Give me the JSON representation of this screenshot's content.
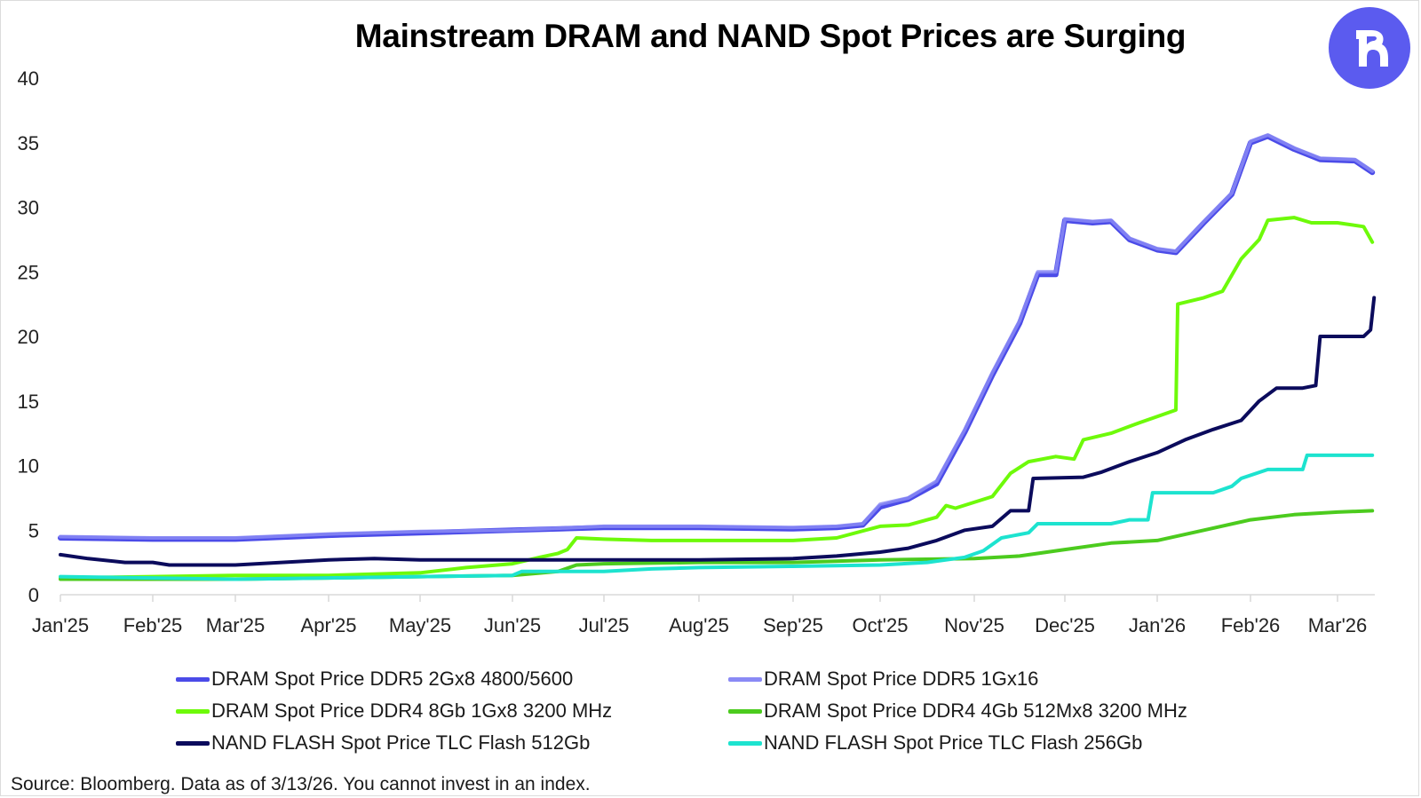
{
  "header": {
    "title": "Mainstream DRAM and NAND Spot Prices are Surging",
    "logo_icon": "brand-logo-r-icon",
    "logo_color": "#5B5BEF"
  },
  "footer": {
    "source": "Source: Bloomberg. Data as of 3/13/26. You cannot invest in an index."
  },
  "chart_data": {
    "type": "line",
    "title": "Mainstream DRAM and NAND Spot Prices are Surging",
    "xlabel": "",
    "ylabel": "",
    "ylim": [
      0,
      40
    ],
    "yticks": [
      0,
      5,
      10,
      15,
      20,
      25,
      30,
      35,
      40
    ],
    "x_tick_labels": [
      "Jan'25",
      "Feb'25",
      "Mar'25",
      "Apr'25",
      "May'25",
      "Jun'25",
      "Jul'25",
      "Aug'25",
      "Sep'25",
      "Oct'25",
      "Nov'25",
      "Dec'25",
      "Jan'26",
      "Feb'26",
      "Mar'26"
    ],
    "x_unit": "months since Jan 2025",
    "x_range": [
      0,
      14.4
    ],
    "grid": false,
    "legend_position": "bottom",
    "series": [
      {
        "name": "DRAM Spot Price DDR5 2Gx8 4800/5600",
        "color": "#4B4BE8",
        "points": [
          [
            0,
            4.4
          ],
          [
            1,
            4.3
          ],
          [
            2,
            4.3
          ],
          [
            3,
            4.6
          ],
          [
            4,
            4.8
          ],
          [
            5,
            5.0
          ],
          [
            6,
            5.2
          ],
          [
            7,
            5.2
          ],
          [
            8,
            5.1
          ],
          [
            8.5,
            5.2
          ],
          [
            8.8,
            5.4
          ],
          [
            9,
            6.8
          ],
          [
            9.3,
            7.4
          ],
          [
            9.6,
            8.6
          ],
          [
            9.9,
            12.6
          ],
          [
            10.2,
            17.0
          ],
          [
            10.5,
            21.0
          ],
          [
            10.7,
            24.8
          ],
          [
            10.9,
            24.8
          ],
          [
            11.0,
            29.0
          ],
          [
            11.3,
            28.8
          ],
          [
            11.5,
            28.9
          ],
          [
            11.7,
            27.5
          ],
          [
            12.0,
            26.7
          ],
          [
            12.2,
            26.5
          ],
          [
            12.5,
            28.8
          ],
          [
            12.8,
            31.0
          ],
          [
            13.0,
            35.0
          ],
          [
            13.2,
            35.5
          ],
          [
            13.5,
            34.5
          ],
          [
            13.8,
            33.7
          ],
          [
            14.2,
            33.6
          ],
          [
            14.4,
            32.7
          ]
        ]
      },
      {
        "name": "DRAM Spot Price DDR5 1Gx16",
        "color": "#8A8AF5",
        "points": [
          [
            0,
            4.5
          ],
          [
            1,
            4.4
          ],
          [
            2,
            4.4
          ],
          [
            3,
            4.7
          ],
          [
            4,
            4.9
          ],
          [
            5,
            5.0
          ],
          [
            6,
            5.3
          ],
          [
            7,
            5.3
          ],
          [
            8,
            5.2
          ],
          [
            8.5,
            5.3
          ],
          [
            8.8,
            5.5
          ],
          [
            9,
            7.0
          ],
          [
            9.3,
            7.5
          ],
          [
            9.6,
            8.8
          ],
          [
            9.9,
            12.8
          ],
          [
            10.2,
            17.2
          ],
          [
            10.5,
            21.2
          ],
          [
            10.7,
            25.0
          ],
          [
            10.9,
            25.0
          ],
          [
            11.0,
            29.1
          ],
          [
            11.3,
            28.9
          ],
          [
            11.5,
            29.0
          ],
          [
            11.7,
            27.6
          ],
          [
            12.0,
            26.8
          ],
          [
            12.2,
            26.6
          ],
          [
            12.5,
            28.9
          ],
          [
            12.8,
            31.1
          ],
          [
            13.0,
            35.1
          ],
          [
            13.2,
            35.6
          ],
          [
            13.5,
            34.6
          ],
          [
            13.8,
            33.8
          ],
          [
            14.2,
            33.7
          ],
          [
            14.4,
            32.8
          ]
        ]
      },
      {
        "name": "DRAM Spot Price DDR4 8Gb 1Gx8 3200 MHz",
        "color": "#6EFA0A",
        "points": [
          [
            0,
            1.3
          ],
          [
            1,
            1.4
          ],
          [
            2,
            1.5
          ],
          [
            3,
            1.5
          ],
          [
            4,
            1.7
          ],
          [
            4.5,
            2.1
          ],
          [
            5,
            2.4
          ],
          [
            5.3,
            2.9
          ],
          [
            5.5,
            3.2
          ],
          [
            5.6,
            3.5
          ],
          [
            5.7,
            4.4
          ],
          [
            6,
            4.3
          ],
          [
            6.5,
            4.2
          ],
          [
            7,
            4.2
          ],
          [
            8,
            4.2
          ],
          [
            8.5,
            4.4
          ],
          [
            9,
            5.3
          ],
          [
            9.3,
            5.4
          ],
          [
            9.6,
            6.0
          ],
          [
            9.7,
            6.9
          ],
          [
            9.8,
            6.7
          ],
          [
            10.2,
            7.6
          ],
          [
            10.4,
            9.4
          ],
          [
            10.6,
            10.3
          ],
          [
            10.9,
            10.7
          ],
          [
            11.1,
            10.5
          ],
          [
            11.2,
            12.0
          ],
          [
            11.5,
            12.5
          ],
          [
            11.8,
            13.3
          ],
          [
            12.0,
            13.8
          ],
          [
            12.2,
            14.3
          ],
          [
            12.22,
            22.5
          ],
          [
            12.5,
            23.0
          ],
          [
            12.7,
            23.5
          ],
          [
            12.9,
            26.0
          ],
          [
            13.1,
            27.5
          ],
          [
            13.2,
            29.0
          ],
          [
            13.5,
            29.2
          ],
          [
            13.7,
            28.8
          ],
          [
            14.0,
            28.8
          ],
          [
            14.3,
            28.5
          ],
          [
            14.4,
            27.3
          ]
        ]
      },
      {
        "name": "DRAM Spot Price DDR4 4Gb 512Mx8 3200 MHz",
        "color": "#4CCB1E",
        "points": [
          [
            0,
            1.2
          ],
          [
            1,
            1.2
          ],
          [
            2,
            1.2
          ],
          [
            3,
            1.3
          ],
          [
            4,
            1.4
          ],
          [
            5,
            1.5
          ],
          [
            5.5,
            1.8
          ],
          [
            5.7,
            2.3
          ],
          [
            6,
            2.4
          ],
          [
            7,
            2.5
          ],
          [
            8,
            2.5
          ],
          [
            9,
            2.7
          ],
          [
            10,
            2.8
          ],
          [
            10.5,
            3.0
          ],
          [
            11,
            3.5
          ],
          [
            11.5,
            4.0
          ],
          [
            12,
            4.2
          ],
          [
            12.5,
            5.0
          ],
          [
            13,
            5.8
          ],
          [
            13.5,
            6.2
          ],
          [
            14,
            6.4
          ],
          [
            14.4,
            6.5
          ]
        ]
      },
      {
        "name": "NAND FLASH Spot Price TLC Flash 512Gb",
        "color": "#0B0B5C",
        "points": [
          [
            0,
            3.1
          ],
          [
            0.3,
            2.8
          ],
          [
            0.7,
            2.5
          ],
          [
            1,
            2.5
          ],
          [
            1.2,
            2.3
          ],
          [
            2,
            2.3
          ],
          [
            3,
            2.7
          ],
          [
            3.5,
            2.8
          ],
          [
            4,
            2.7
          ],
          [
            5,
            2.7
          ],
          [
            6,
            2.7
          ],
          [
            7,
            2.7
          ],
          [
            8,
            2.8
          ],
          [
            8.5,
            3.0
          ],
          [
            9,
            3.3
          ],
          [
            9.3,
            3.6
          ],
          [
            9.6,
            4.2
          ],
          [
            9.9,
            5.0
          ],
          [
            10.2,
            5.3
          ],
          [
            10.4,
            6.5
          ],
          [
            10.6,
            6.5
          ],
          [
            10.65,
            9.0
          ],
          [
            11.2,
            9.1
          ],
          [
            11.4,
            9.5
          ],
          [
            11.7,
            10.3
          ],
          [
            12.0,
            11.0
          ],
          [
            12.3,
            12.0
          ],
          [
            12.6,
            12.8
          ],
          [
            12.9,
            13.5
          ],
          [
            13.1,
            15.0
          ],
          [
            13.3,
            16.0
          ],
          [
            13.6,
            16.0
          ],
          [
            13.75,
            16.2
          ],
          [
            13.8,
            20.0
          ],
          [
            14.3,
            20.0
          ],
          [
            14.38,
            20.5
          ],
          [
            14.42,
            23.0
          ]
        ]
      },
      {
        "name": "NAND FLASH Spot Price TLC Flash 256Gb",
        "color": "#1DE3CF",
        "points": [
          [
            0,
            1.4
          ],
          [
            1,
            1.3
          ],
          [
            2,
            1.2
          ],
          [
            3,
            1.3
          ],
          [
            4,
            1.4
          ],
          [
            5,
            1.5
          ],
          [
            5.1,
            1.8
          ],
          [
            6,
            1.8
          ],
          [
            6.5,
            2.0
          ],
          [
            7,
            2.1
          ],
          [
            8,
            2.2
          ],
          [
            9,
            2.3
          ],
          [
            9.5,
            2.5
          ],
          [
            9.9,
            2.9
          ],
          [
            10.1,
            3.4
          ],
          [
            10.3,
            4.4
          ],
          [
            10.6,
            4.8
          ],
          [
            10.7,
            5.5
          ],
          [
            11.5,
            5.5
          ],
          [
            11.7,
            5.8
          ],
          [
            11.9,
            5.8
          ],
          [
            11.95,
            7.9
          ],
          [
            12.6,
            7.9
          ],
          [
            12.8,
            8.4
          ],
          [
            12.9,
            9.0
          ],
          [
            13.2,
            9.7
          ],
          [
            13.6,
            9.7
          ],
          [
            13.65,
            10.8
          ],
          [
            14.4,
            10.8
          ]
        ]
      }
    ]
  }
}
